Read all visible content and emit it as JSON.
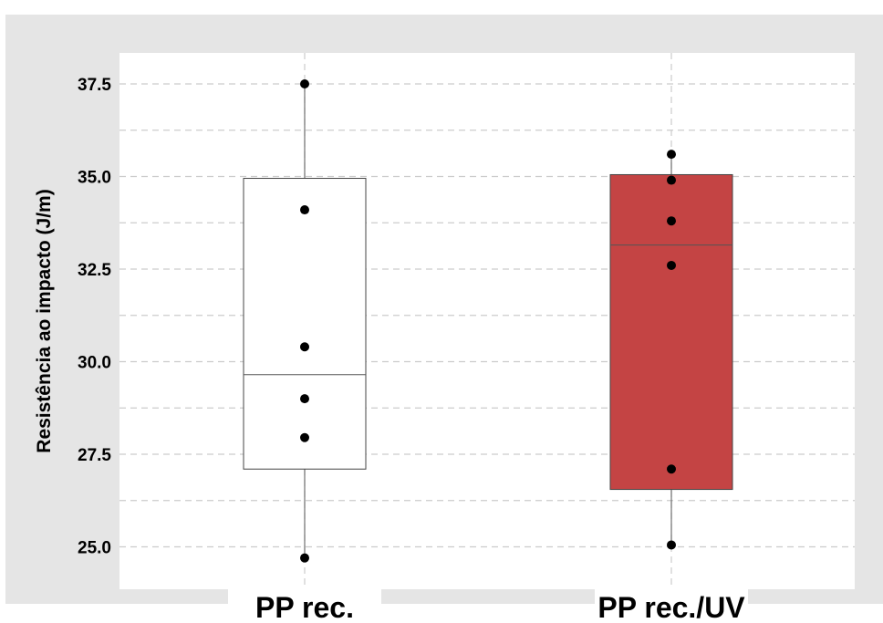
{
  "chart_data": {
    "type": "box",
    "title": "",
    "xlabel": "",
    "ylabel": "Resistência ao impacto (J/m)",
    "ylim": [
      23.9,
      38.9
    ],
    "yticks": [
      25.0,
      27.5,
      30.0,
      32.5,
      35.0,
      37.5
    ],
    "ytick_labels": [
      "25.0",
      "27.5",
      "30.0",
      "32.5",
      "35.0",
      "37.5"
    ],
    "grid": true,
    "categories": [
      "PP rec.",
      "PP rec./UV"
    ],
    "series": [
      {
        "box": {
          "whisker_low": 24.7,
          "q1": 27.1,
          "median": 29.65,
          "q3": 34.95,
          "whisker_high": 37.5
        },
        "points": [
          37.5,
          34.1,
          30.4,
          29.0,
          27.95,
          24.7
        ],
        "fill": "#ffffff"
      },
      {
        "box": {
          "whisker_low": 25.05,
          "q1": 26.55,
          "median": 33.15,
          "q3": 35.05,
          "whisker_high": 35.6
        },
        "points": [
          35.6,
          34.9,
          33.8,
          32.6,
          27.1,
          25.05
        ],
        "fill": "#c44444"
      }
    ],
    "colors": {
      "frame_background": "#e5e5e5",
      "plot_background": "#ffffff",
      "grid": "#cccccc",
      "box_outline": "#444444",
      "point": "#000000"
    }
  }
}
